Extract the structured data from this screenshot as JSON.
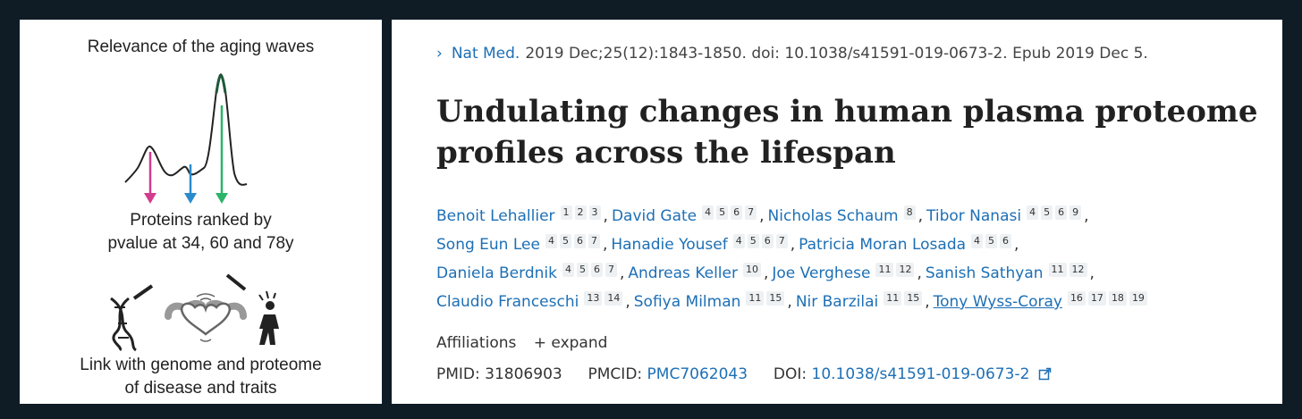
{
  "left_panel": {
    "title": "Relevance of the aging waves",
    "ranked_text": [
      "Proteins ranked by",
      "pvalue at 34, 60 and 78y"
    ],
    "link_text": [
      "Link with genome and proteome",
      "of disease and traits"
    ],
    "icons": [
      "dna-icon",
      "heart-muscle-icon",
      "person-walking-icon"
    ],
    "colors": {
      "arrow1": "#d23c8c",
      "arrow2": "#2b8ccc",
      "arrow3": "#2db36a",
      "peak": "#1e5a3a"
    }
  },
  "citation": {
    "journal": "Nat Med.",
    "details": "2019 Dec;25(12):1843-1850. doi: 10.1038/s41591-019-0673-2. Epub 2019 Dec 5."
  },
  "article": {
    "title_lines": [
      "Undulating changes in human plasma proteome",
      "profiles across the lifespan"
    ]
  },
  "authors": [
    {
      "name": "Benoit Lehallier",
      "affs": [
        "1",
        "2",
        "3"
      ]
    },
    {
      "name": "David Gate",
      "affs": [
        "4",
        "5",
        "6",
        "7"
      ]
    },
    {
      "name": "Nicholas Schaum",
      "affs": [
        "8"
      ]
    },
    {
      "name": "Tibor Nanasi",
      "affs": [
        "4",
        "5",
        "6",
        "9"
      ]
    },
    {
      "name": "Song Eun Lee",
      "affs": [
        "4",
        "5",
        "6",
        "7"
      ]
    },
    {
      "name": "Hanadie Yousef",
      "affs": [
        "4",
        "5",
        "6",
        "7"
      ]
    },
    {
      "name": "Patricia Moran Losada",
      "affs": [
        "4",
        "5",
        "6"
      ]
    },
    {
      "name": "Daniela Berdnik",
      "affs": [
        "4",
        "5",
        "6",
        "7"
      ]
    },
    {
      "name": "Andreas Keller",
      "affs": [
        "10"
      ]
    },
    {
      "name": "Joe Verghese",
      "affs": [
        "11",
        "12"
      ]
    },
    {
      "name": "Sanish Sathyan",
      "affs": [
        "11",
        "12"
      ]
    },
    {
      "name": "Claudio Franceschi",
      "affs": [
        "13",
        "14"
      ]
    },
    {
      "name": "Sofiya Milman",
      "affs": [
        "11",
        "15"
      ]
    },
    {
      "name": "Nir Barzilai",
      "affs": [
        "11",
        "15"
      ]
    },
    {
      "name": "Tony Wyss-Coray",
      "affs": [
        "16",
        "17",
        "18",
        "19"
      ]
    }
  ],
  "affiliations": {
    "label": "Affiliations",
    "expand_label": "+ expand"
  },
  "ids": {
    "pmid_label": "PMID:",
    "pmid": "31806903",
    "pmcid_label": "PMCID:",
    "pmcid": "PMC7062043",
    "doi_label": "DOI:",
    "doi": "10.1038/s41591-019-0673-2"
  },
  "colors": {
    "link": "#1d6fb5",
    "background": "#0f1c26"
  }
}
